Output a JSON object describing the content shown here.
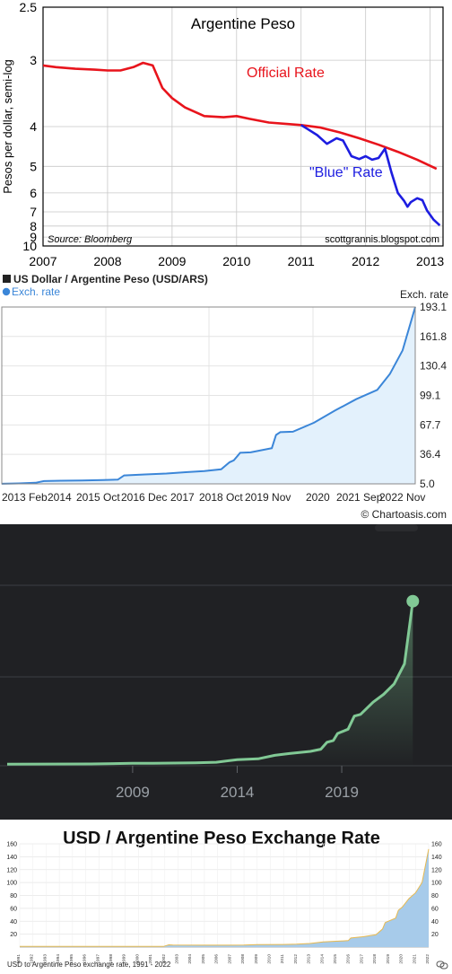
{
  "colors": {
    "official": "#e8141c",
    "blue": "#1d1de0",
    "chartoasis_line": "#3b86d8",
    "chartoasis_fill": "#e3f1fc",
    "dark_bg": "#202124",
    "dark_line": "#81c995",
    "panel4_fill": "#a7cbea",
    "panel4_title": "#111111"
  },
  "chart_data": [
    {
      "type": "line",
      "title": "Argentine Peso",
      "ylabel": "Pesos per dollar, semi-log",
      "y_scale": "reciprocal",
      "y_inverted": true,
      "ylim": [
        2.5,
        10
      ],
      "y_ticks": [
        "2.5",
        "3",
        "4",
        "5",
        "6",
        "7",
        "8",
        "9",
        "10"
      ],
      "x_ticks": [
        "2007",
        "2008",
        "2009",
        "2010",
        "2011",
        "2012",
        "2013"
      ],
      "xlim": [
        2007,
        2013.2
      ],
      "source": "Source: Bloomberg",
      "credit": "scottgrannis.blogspot.com",
      "grid": true,
      "series": [
        {
          "name": "Official Rate",
          "x": [
            2007.0,
            2007.2,
            2007.5,
            2007.8,
            2008.0,
            2008.2,
            2008.4,
            2008.55,
            2008.7,
            2008.85,
            2009.0,
            2009.2,
            2009.5,
            2009.8,
            2010.0,
            2010.2,
            2010.5,
            2010.8,
            2011.0,
            2011.3,
            2011.6,
            2011.9,
            2012.2,
            2012.5,
            2012.8,
            2013.1
          ],
          "values": [
            3.06,
            3.08,
            3.1,
            3.11,
            3.12,
            3.12,
            3.08,
            3.03,
            3.06,
            3.35,
            3.5,
            3.65,
            3.8,
            3.82,
            3.8,
            3.85,
            3.92,
            3.95,
            3.97,
            4.02,
            4.12,
            4.25,
            4.4,
            4.58,
            4.8,
            5.08
          ]
        },
        {
          "name": "\"Blue\" Rate",
          "x": [
            2011.0,
            2011.1,
            2011.25,
            2011.4,
            2011.55,
            2011.65,
            2011.78,
            2011.9,
            2012.0,
            2012.1,
            2012.2,
            2012.3,
            2012.4,
            2012.5,
            2012.6,
            2012.65,
            2012.7,
            2012.8,
            2012.88,
            2012.95,
            2013.05,
            2013.15
          ],
          "values": [
            3.97,
            4.05,
            4.18,
            4.38,
            4.25,
            4.3,
            4.7,
            4.78,
            4.7,
            4.8,
            4.75,
            4.5,
            5.2,
            6.0,
            6.4,
            6.7,
            6.45,
            6.25,
            6.35,
            6.9,
            7.5,
            7.95
          ]
        }
      ]
    },
    {
      "type": "area",
      "title": "US Dollar / Argentine Peso (USD/ARS)",
      "legend": "Exch. rate",
      "ylabel": "Exch. rate",
      "y_ticks": [
        "5.0",
        "36.4",
        "67.7",
        "99.1",
        "130.4",
        "161.8",
        "193.1"
      ],
      "ylim": [
        5.0,
        193.1
      ],
      "xlim": [
        2013.1,
        2022.9
      ],
      "x_ticks": [
        "2013 Feb",
        "2014",
        "2015 Oct",
        "2016 Dec",
        "2017",
        "2018 Oct",
        "2019 Nov",
        "2020",
        "2021 Sep",
        "2022 Nov"
      ],
      "credit": "© Chartoasis.com",
      "x": [
        2013.1,
        2013.5,
        2013.9,
        2014.1,
        2014.5,
        2015.0,
        2015.5,
        2015.85,
        2016.0,
        2016.5,
        2017.0,
        2017.5,
        2017.9,
        2018.3,
        2018.5,
        2018.6,
        2018.75,
        2019.0,
        2019.5,
        2019.6,
        2019.7,
        2020.0,
        2020.5,
        2021.0,
        2021.5,
        2022.0,
        2022.3,
        2022.6,
        2022.9
      ],
      "values": [
        5.1,
        5.5,
        6.1,
        8.0,
        8.3,
        8.6,
        9.1,
        9.5,
        14.0,
        15.0,
        16.0,
        17.5,
        18.6,
        20.5,
        28.0,
        30.0,
        38.0,
        38.5,
        43.0,
        57.0,
        60.0,
        60.5,
        70.0,
        83.0,
        95.0,
        105.0,
        122.0,
        147.0,
        193.1
      ]
    },
    {
      "type": "area",
      "x_ticks": [
        "2009",
        "2014",
        "2019"
      ],
      "xlim": [
        2003.0,
        2022.6
      ],
      "ylim": [
        0,
        200
      ],
      "x": [
        2003.0,
        2005.0,
        2007.0,
        2009.0,
        2010.0,
        2012.0,
        2013.0,
        2014.0,
        2015.0,
        2015.8,
        2016.5,
        2017.5,
        2018.0,
        2018.3,
        2018.6,
        2018.8,
        2019.3,
        2019.6,
        2019.9,
        2020.5,
        2021.0,
        2021.5,
        2022.0,
        2022.4
      ],
      "values": [
        2.9,
        2.95,
        3.1,
        3.8,
        3.9,
        4.4,
        5.0,
        8.0,
        9.0,
        13.0,
        15.0,
        17.5,
        20.0,
        28.0,
        30.0,
        38.0,
        43.0,
        58.0,
        60.0,
        74.0,
        83.0,
        95.0,
        118.0,
        190.0
      ]
    },
    {
      "type": "area",
      "title": "USD / Argentine Peso Exchange Rate",
      "caption": "USD to Argentine Peso exchange rate, 1991 - 2022",
      "y_ticks": [
        "20",
        "40",
        "60",
        "80",
        "100",
        "120",
        "140",
        "160"
      ],
      "ylim": [
        0,
        160
      ],
      "xlim": [
        1991,
        2022
      ],
      "x_ticks": [
        "1991",
        "1992",
        "1993",
        "1994",
        "1995",
        "1996",
        "1997",
        "1998",
        "1999",
        "2000",
        "2001",
        "2002",
        "2003",
        "2004",
        "2005",
        "2006",
        "2007",
        "2008",
        "2009",
        "2010",
        "2011",
        "2012",
        "2013",
        "2014",
        "2015",
        "2016",
        "2017",
        "2018",
        "2019",
        "2020",
        "2021",
        "2022"
      ],
      "x": [
        1991.0,
        2001.9,
        2002.3,
        2002.6,
        2005.0,
        2008.0,
        2009.0,
        2011.0,
        2012.0,
        2013.0,
        2014.0,
        2015.9,
        2016.1,
        2017.0,
        2018.0,
        2018.5,
        2018.7,
        2019.5,
        2019.7,
        2020.0,
        2020.5,
        2021.0,
        2021.5,
        2022.0
      ],
      "values": [
        1.0,
        1.0,
        3.5,
        3.0,
        2.9,
        3.1,
        3.8,
        4.1,
        4.5,
        5.5,
        8.0,
        10.0,
        14.0,
        16.0,
        19.0,
        28.0,
        38.0,
        45.0,
        57.0,
        62.0,
        75.0,
        84.0,
        100.0,
        152.0
      ]
    }
  ]
}
